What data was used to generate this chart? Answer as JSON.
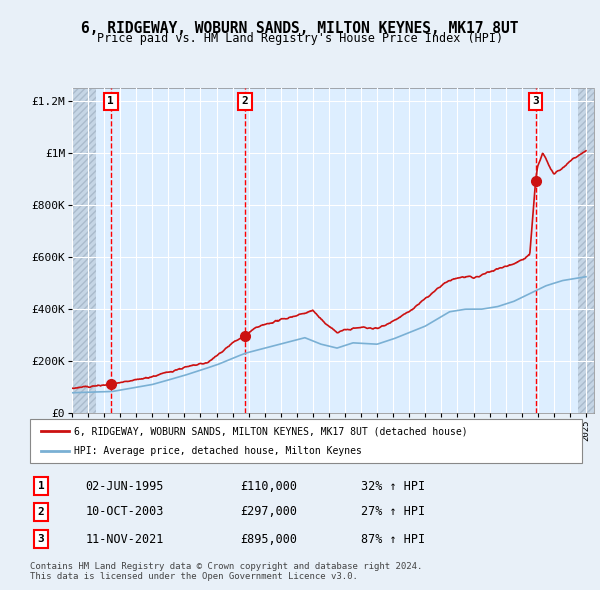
{
  "title": "6, RIDGEWAY, WOBURN SANDS, MILTON KEYNES, MK17 8UT",
  "subtitle": "Price paid vs. HM Land Registry's House Price Index (HPI)",
  "legend_line1": "6, RIDGEWAY, WOBURN SANDS, MILTON KEYNES, MK17 8UT (detached house)",
  "legend_line2": "HPI: Average price, detached house, Milton Keynes",
  "sale_labels": [
    {
      "num": 1,
      "date": "02-JUN-1995",
      "price": "£110,000",
      "hpi": "32% ↑ HPI"
    },
    {
      "num": 2,
      "date": "10-OCT-2003",
      "price": "£297,000",
      "hpi": "27% ↑ HPI"
    },
    {
      "num": 3,
      "date": "11-NOV-2021",
      "price": "£895,000",
      "hpi": "87% ↑ HPI"
    }
  ],
  "footnote1": "Contains HM Land Registry data © Crown copyright and database right 2024.",
  "footnote2": "This data is licensed under the Open Government Licence v3.0.",
  "sale_dates_num": [
    1995.42,
    2003.77,
    2021.86
  ],
  "sale_prices": [
    110000,
    297000,
    895000
  ],
  "background_color": "#ddeeff",
  "plot_bg_color": "#ddeeff",
  "hatch_color": "#aabbcc",
  "grid_color": "#ffffff",
  "line_color_red": "#cc0000",
  "line_color_blue": "#6699cc",
  "ylim": [
    0,
    1250000
  ],
  "xlim_start": 1993.0,
  "xlim_end": 2025.5
}
